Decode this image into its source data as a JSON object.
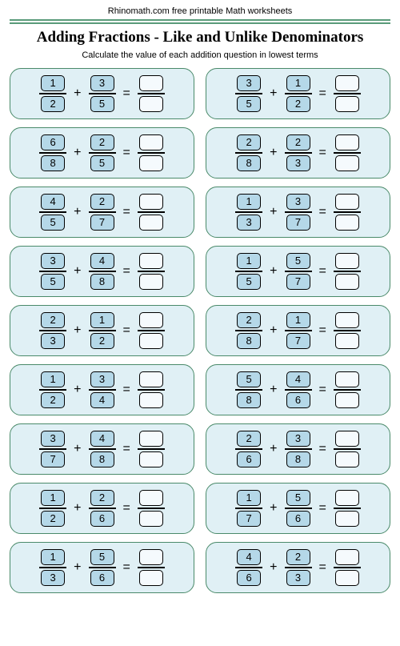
{
  "header": "Rhinomath.com free printable Math worksheets",
  "title": "Adding Fractions - Like and Unlike Denominators",
  "subtitle": "Calculate the value of each addition question in lowest terms",
  "operators": {
    "plus": "+",
    "equals": "="
  },
  "style": {
    "page_bg": "#ffffff",
    "problem_bg": "#e0f0f5",
    "problem_border": "#4a8a6a",
    "cell_filled_bg": "#b5d8e8",
    "cell_empty_bg": "#f5fafd",
    "rule_color": "#5a9b7a",
    "title_fontsize": 19,
    "subtitle_fontsize": 11,
    "cell_fontsize": 13
  },
  "problems": [
    {
      "a": {
        "n": "1",
        "d": "2"
      },
      "b": {
        "n": "3",
        "d": "5"
      }
    },
    {
      "a": {
        "n": "3",
        "d": "5"
      },
      "b": {
        "n": "1",
        "d": "2"
      }
    },
    {
      "a": {
        "n": "6",
        "d": "8"
      },
      "b": {
        "n": "2",
        "d": "5"
      }
    },
    {
      "a": {
        "n": "2",
        "d": "8"
      },
      "b": {
        "n": "2",
        "d": "3"
      }
    },
    {
      "a": {
        "n": "4",
        "d": "5"
      },
      "b": {
        "n": "2",
        "d": "7"
      }
    },
    {
      "a": {
        "n": "1",
        "d": "3"
      },
      "b": {
        "n": "3",
        "d": "7"
      }
    },
    {
      "a": {
        "n": "3",
        "d": "5"
      },
      "b": {
        "n": "4",
        "d": "8"
      }
    },
    {
      "a": {
        "n": "1",
        "d": "5"
      },
      "b": {
        "n": "5",
        "d": "7"
      }
    },
    {
      "a": {
        "n": "2",
        "d": "3"
      },
      "b": {
        "n": "1",
        "d": "2"
      }
    },
    {
      "a": {
        "n": "2",
        "d": "8"
      },
      "b": {
        "n": "1",
        "d": "7"
      }
    },
    {
      "a": {
        "n": "1",
        "d": "2"
      },
      "b": {
        "n": "3",
        "d": "4"
      }
    },
    {
      "a": {
        "n": "5",
        "d": "8"
      },
      "b": {
        "n": "4",
        "d": "6"
      }
    },
    {
      "a": {
        "n": "3",
        "d": "7"
      },
      "b": {
        "n": "4",
        "d": "8"
      }
    },
    {
      "a": {
        "n": "2",
        "d": "6"
      },
      "b": {
        "n": "3",
        "d": "8"
      }
    },
    {
      "a": {
        "n": "1",
        "d": "2"
      },
      "b": {
        "n": "2",
        "d": "6"
      }
    },
    {
      "a": {
        "n": "1",
        "d": "7"
      },
      "b": {
        "n": "5",
        "d": "6"
      }
    },
    {
      "a": {
        "n": "1",
        "d": "3"
      },
      "b": {
        "n": "5",
        "d": "6"
      }
    },
    {
      "a": {
        "n": "4",
        "d": "6"
      },
      "b": {
        "n": "2",
        "d": "3"
      }
    }
  ]
}
